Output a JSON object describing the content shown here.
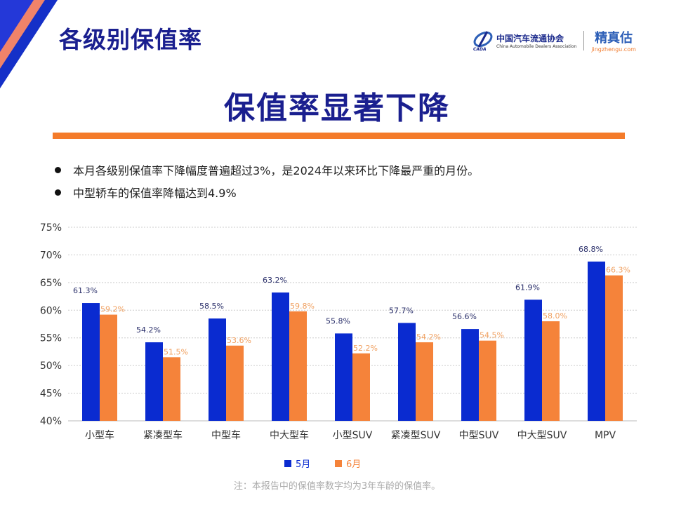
{
  "header": {
    "page_title": "各级别保值率",
    "logo_cada_cn": "中国汽车流通协会",
    "logo_cada_en": "China Automobile Dealers Association",
    "logo_cada_abbr": "CADA",
    "logo_jzg_cn": "精真估",
    "logo_jzg_en": "jingzhengu.com"
  },
  "headline": "保值率显著下降",
  "bullets": [
    "本月各级别保值率下降幅度普遍超过3%，是2024年以来环比下降最严重的月份。",
    "中型轿车的保值率降幅达到4.9%"
  ],
  "footnote": "注：本报告中的保值率数字均为3年车龄的保值率。",
  "colors": {
    "accent_blue": "#0a2bd0",
    "accent_orange": "#f5833a",
    "title_blue": "#1a1f8f"
  },
  "chart_data": {
    "type": "bar",
    "categories": [
      "小型车",
      "紧凑型车",
      "中型车",
      "中大型车",
      "小型SUV",
      "紧凑型SUV",
      "中型SUV",
      "中大型SUV",
      "MPV"
    ],
    "series": [
      {
        "name": "5月",
        "color": "#0a2bd0",
        "values": [
          61.3,
          54.2,
          58.5,
          63.2,
          55.8,
          57.7,
          56.6,
          61.9,
          68.8
        ],
        "labels": [
          "61.3%",
          "54.2%",
          "58.5%",
          "63.2%",
          "55.8%",
          "57.7%",
          "56.6%",
          "61.9%",
          "68.8%"
        ]
      },
      {
        "name": "6月",
        "color": "#f5833a",
        "values": [
          59.2,
          51.5,
          53.6,
          59.8,
          52.2,
          54.2,
          54.5,
          58.0,
          66.3
        ],
        "labels": [
          "59.2%",
          "51.5%",
          "53.6%",
          "59.8%",
          "52.2%",
          "54.2%",
          "54.5%",
          "58.0%",
          "66.3%"
        ]
      }
    ],
    "ylim": [
      40,
      75
    ],
    "yticks": [
      "40%",
      "45%",
      "50%",
      "55%",
      "60%",
      "65%",
      "70%",
      "75%"
    ],
    "grid": true,
    "legend": "bottom"
  }
}
